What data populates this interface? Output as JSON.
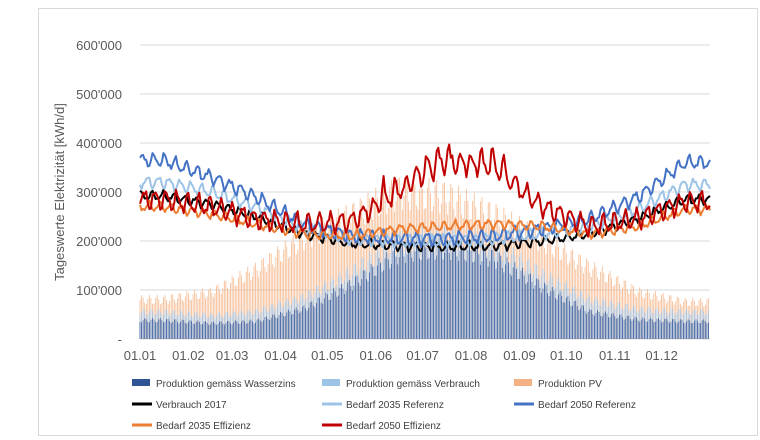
{
  "chart_data": {
    "type": "bar+line",
    "ylabel": "Tageswerte Elektrizität [kWh/d]",
    "ylim": [
      0,
      600000
    ],
    "yticks": [
      {
        "value": 0,
        "label": "-"
      },
      {
        "value": 100000,
        "label": "100'000"
      },
      {
        "value": 200000,
        "label": "200'000"
      },
      {
        "value": 300000,
        "label": "300'000"
      },
      {
        "value": 400000,
        "label": "400'000"
      },
      {
        "value": 500000,
        "label": "500'000"
      },
      {
        "value": 600000,
        "label": "600'000"
      }
    ],
    "xlim_days": [
      0,
      365
    ],
    "xticks": [
      {
        "day": 0,
        "label": "01.01"
      },
      {
        "day": 31,
        "label": "01.02"
      },
      {
        "day": 59,
        "label": "01.03"
      },
      {
        "day": 90,
        "label": "01.04"
      },
      {
        "day": 120,
        "label": "01.05"
      },
      {
        "day": 151,
        "label": "01.06"
      },
      {
        "day": 181,
        "label": "01.07"
      },
      {
        "day": 212,
        "label": "01.08"
      },
      {
        "day": 243,
        "label": "01.09"
      },
      {
        "day": 273,
        "label": "01.10"
      },
      {
        "day": 304,
        "label": "01.11"
      },
      {
        "day": 334,
        "label": "01.12"
      }
    ],
    "series": [
      {
        "name": "Produktion gemäss Wasserzins",
        "kind": "bar",
        "color": "#2f5597",
        "monthly_values": [
          38000,
          32000,
          36000,
          62000,
          110000,
          175000,
          185000,
          165000,
          105000,
          55000,
          40000,
          36000
        ]
      },
      {
        "name": "Produktion gemäss Verbrauch",
        "kind": "bar",
        "color": "#9dc3e6",
        "monthly_values": [
          55000,
          48000,
          55000,
          85000,
          135000,
          200000,
          210000,
          190000,
          130000,
          80000,
          60000,
          55000
        ]
      },
      {
        "name": "Produktion PV",
        "kind": "bar",
        "color": "#f4b183",
        "monthly_values": [
          80000,
          95000,
          140000,
          205000,
          250000,
          300000,
          290000,
          250000,
          200000,
          145000,
          95000,
          75000
        ]
      },
      {
        "name": "Verbrauch 2017",
        "kind": "line",
        "color": "#000000",
        "width": 2,
        "monthly_values": [
          292000,
          275000,
          250000,
          215000,
          195000,
          190000,
          188000,
          190000,
          200000,
          215000,
          245000,
          285000
        ]
      },
      {
        "name": "Bedarf 2035 Referenz",
        "kind": "line",
        "color": "#9dc3e6",
        "width": 2,
        "monthly_values": [
          320000,
          300000,
          270000,
          225000,
          205000,
          200000,
          200000,
          205000,
          215000,
          230000,
          265000,
          315000
        ]
      },
      {
        "name": "Bedarf 2050 Referenz",
        "kind": "line",
        "color": "#4472c4",
        "width": 2,
        "monthly_values": [
          365000,
          330000,
          290000,
          235000,
          210000,
          205000,
          205000,
          210000,
          225000,
          245000,
          290000,
          360000
        ]
      },
      {
        "name": "Bedarf 2035 Effizienz",
        "kind": "line",
        "color": "#ed7d31",
        "width": 2,
        "monthly_values": [
          270000,
          255000,
          235000,
          215000,
          210000,
          225000,
          230000,
          235000,
          230000,
          215000,
          230000,
          265000
        ]
      },
      {
        "name": "Bedarf 2050 Effizienz",
        "kind": "line",
        "color": "#c00000",
        "width": 2,
        "monthly_values": [
          285000,
          270000,
          245000,
          235000,
          240000,
          300000,
          360000,
          345000,
          270000,
          230000,
          245000,
          280000
        ]
      }
    ]
  },
  "legend": {
    "items": [
      {
        "label": "Produktion gemäss Wasserzins"
      },
      {
        "label": "Produktion gemäss Verbrauch"
      },
      {
        "label": "Produktion PV"
      },
      {
        "label": "Verbrauch 2017"
      },
      {
        "label": "Bedarf 2035 Referenz"
      },
      {
        "label": "Bedarf 2050 Referenz"
      },
      {
        "label": "Bedarf 2035 Effizienz"
      },
      {
        "label": "Bedarf 2050 Effizienz"
      }
    ]
  }
}
